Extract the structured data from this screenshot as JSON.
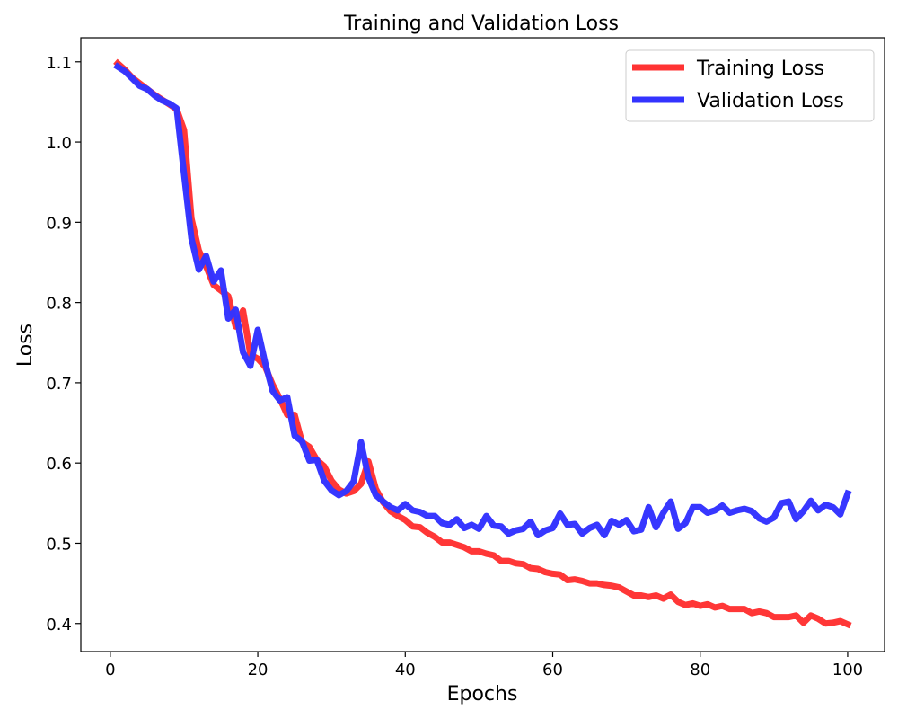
{
  "chart_data": {
    "type": "line",
    "title": "Training and Validation Loss",
    "xlabel": "Epochs",
    "ylabel": "Loss",
    "xlim": [
      -4,
      105
    ],
    "ylim": [
      0.365,
      1.13
    ],
    "xticks": [
      0,
      20,
      40,
      60,
      80,
      100
    ],
    "yticks": [
      0.4,
      0.5,
      0.6,
      0.7,
      0.8,
      0.9,
      1.0,
      1.1
    ],
    "xtick_labels": [
      "0",
      "20",
      "40",
      "60",
      "80",
      "100"
    ],
    "ytick_labels": [
      "0.4",
      "0.5",
      "0.6",
      "0.7",
      "0.8",
      "0.9",
      "1.0",
      "1.1"
    ],
    "grid": false,
    "legend_position": "top-right",
    "x": [
      1,
      2,
      3,
      4,
      5,
      6,
      7,
      8,
      9,
      10,
      11,
      12,
      13,
      14,
      15,
      16,
      17,
      18,
      19,
      20,
      21,
      22,
      23,
      24,
      25,
      26,
      27,
      28,
      29,
      30,
      31,
      32,
      33,
      34,
      35,
      36,
      37,
      38,
      39,
      40,
      41,
      42,
      43,
      44,
      45,
      46,
      47,
      48,
      49,
      50,
      51,
      52,
      53,
      54,
      55,
      56,
      57,
      58,
      59,
      60,
      61,
      62,
      63,
      64,
      65,
      66,
      67,
      68,
      69,
      70,
      71,
      72,
      73,
      74,
      75,
      76,
      77,
      78,
      79,
      80,
      81,
      82,
      83,
      84,
      85,
      86,
      87,
      88,
      89,
      90,
      91,
      92,
      93,
      94,
      95,
      96,
      97,
      98,
      99,
      100
    ],
    "series": [
      {
        "name": "Training Loss",
        "color": "#ff3333",
        "values": [
          1.098,
          1.09,
          1.08,
          1.073,
          1.066,
          1.059,
          1.053,
          1.047,
          1.041,
          1.015,
          0.905,
          0.865,
          0.845,
          0.822,
          0.815,
          0.808,
          0.77,
          0.79,
          0.735,
          0.73,
          0.72,
          0.698,
          0.68,
          0.66,
          0.66,
          0.626,
          0.62,
          0.604,
          0.596,
          0.578,
          0.567,
          0.562,
          0.565,
          0.574,
          0.602,
          0.568,
          0.551,
          0.54,
          0.534,
          0.529,
          0.521,
          0.52,
          0.513,
          0.508,
          0.501,
          0.501,
          0.498,
          0.495,
          0.49,
          0.49,
          0.487,
          0.485,
          0.478,
          0.478,
          0.475,
          0.474,
          0.469,
          0.468,
          0.464,
          0.462,
          0.461,
          0.454,
          0.455,
          0.453,
          0.45,
          0.45,
          0.448,
          0.447,
          0.445,
          0.44,
          0.435,
          0.435,
          0.433,
          0.435,
          0.431,
          0.436,
          0.427,
          0.423,
          0.425,
          0.422,
          0.424,
          0.42,
          0.422,
          0.418,
          0.418,
          0.418,
          0.413,
          0.415,
          0.413,
          0.408,
          0.408,
          0.408,
          0.41,
          0.401,
          0.41,
          0.406,
          0.4,
          0.401,
          0.403,
          0.399
        ]
      },
      {
        "name": "Validation Loss",
        "color": "#3333ff",
        "values": [
          1.094,
          1.088,
          1.079,
          1.07,
          1.066,
          1.058,
          1.052,
          1.048,
          1.042,
          0.96,
          0.88,
          0.841,
          0.858,
          0.826,
          0.84,
          0.78,
          0.791,
          0.738,
          0.721,
          0.766,
          0.725,
          0.69,
          0.678,
          0.682,
          0.634,
          0.627,
          0.603,
          0.604,
          0.578,
          0.566,
          0.56,
          0.565,
          0.577,
          0.626,
          0.582,
          0.56,
          0.552,
          0.545,
          0.541,
          0.549,
          0.541,
          0.539,
          0.534,
          0.534,
          0.525,
          0.523,
          0.53,
          0.519,
          0.523,
          0.518,
          0.534,
          0.522,
          0.521,
          0.512,
          0.516,
          0.518,
          0.527,
          0.51,
          0.516,
          0.519,
          0.537,
          0.523,
          0.524,
          0.512,
          0.519,
          0.523,
          0.51,
          0.528,
          0.523,
          0.529,
          0.515,
          0.517,
          0.545,
          0.52,
          0.538,
          0.552,
          0.518,
          0.525,
          0.545,
          0.545,
          0.538,
          0.541,
          0.547,
          0.538,
          0.541,
          0.543,
          0.54,
          0.531,
          0.527,
          0.532,
          0.55,
          0.552,
          0.53,
          0.54,
          0.553,
          0.541,
          0.548,
          0.545,
          0.536,
          0.562
        ]
      }
    ]
  }
}
